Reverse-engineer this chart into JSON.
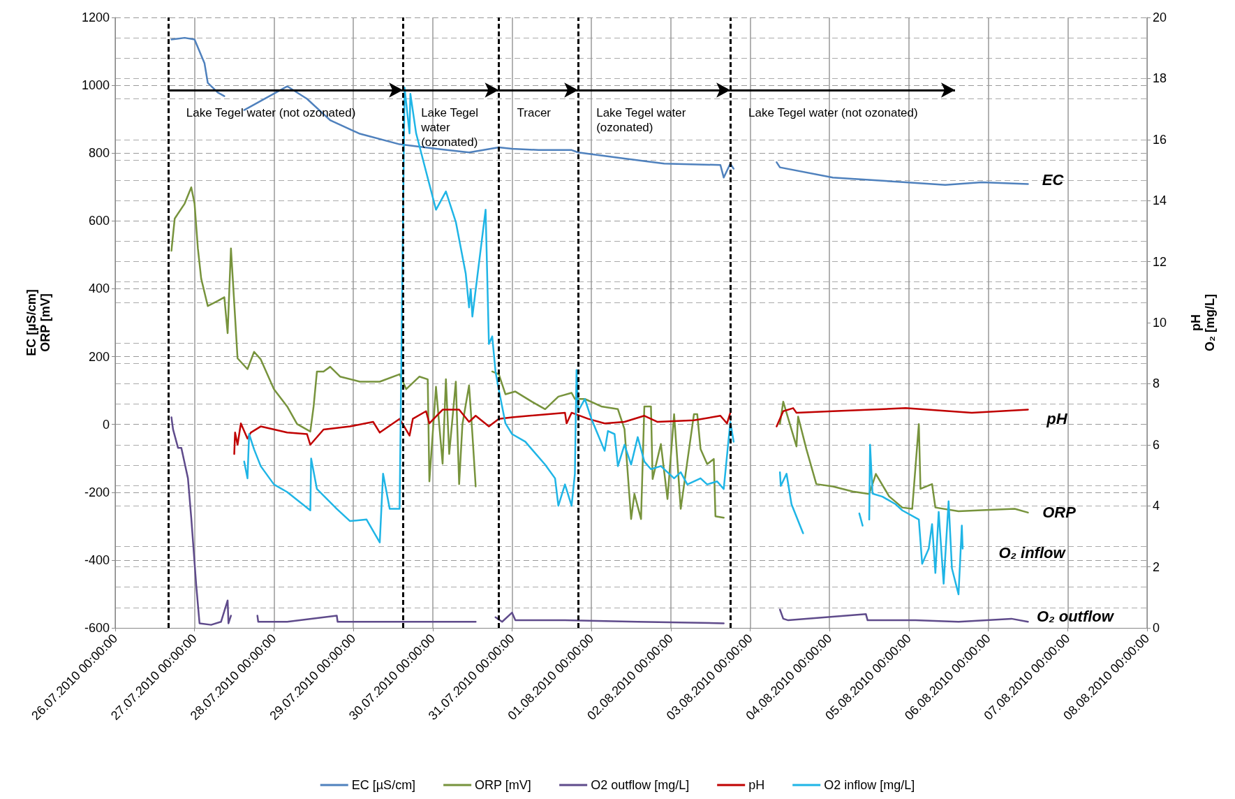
{
  "chart_data": {
    "type": "line",
    "ylabel": "EC [µS/cm]\nORP [mV]",
    "y2label": "pH\nO₂ [mg/L]",
    "xlim": [
      "2010-07-26",
      "2010-08-08"
    ],
    "xticks": [
      {
        "value": "2010-07-26",
        "label": "26.07.2010 00:00:00"
      },
      {
        "value": "2010-07-27",
        "label": "27.07.2010 00:00:00"
      },
      {
        "value": "2010-07-28",
        "label": "28.07.2010 00:00:00"
      },
      {
        "value": "2010-07-29",
        "label": "29.07.2010 00:00:00"
      },
      {
        "value": "2010-07-30",
        "label": "30.07.2010 00:00:00"
      },
      {
        "value": "2010-07-31",
        "label": "31.07.2010 00:00:00"
      },
      {
        "value": "2010-08-01",
        "label": "01.08.2010 00:00:00"
      },
      {
        "value": "2010-08-02",
        "label": "02.08.2010 00:00:00"
      },
      {
        "value": "2010-08-03",
        "label": "03.08.2010 00:00:00"
      },
      {
        "value": "2010-08-04",
        "label": "04.08.2010 00:00:00"
      },
      {
        "value": "2010-08-05",
        "label": "05.08.2010 00:00:00"
      },
      {
        "value": "2010-08-06",
        "label": "06.08.2010 00:00:00"
      },
      {
        "value": "2010-08-07",
        "label": "07.08.2010 00:00:00"
      },
      {
        "value": "2010-08-08",
        "label": "08.08.2010 00:00:00"
      }
    ],
    "ylim": [
      -600,
      1200
    ],
    "yticks": [
      -600,
      -400,
      -200,
      0,
      200,
      400,
      600,
      800,
      1000,
      1200
    ],
    "y2lim": [
      0,
      20
    ],
    "y2ticks": [
      0,
      2,
      4,
      6,
      8,
      10,
      12,
      14,
      16,
      18,
      20
    ],
    "grid": true,
    "legend": "bottom",
    "marker": "none",
    "line_style": "solid",
    "series": [
      {
        "name": "EC [µS/cm]",
        "color": "#4f81bd",
        "x": [
          "2010-07-26T17:00",
          "2010-07-26T21:00",
          "2010-07-27T00:00",
          "2010-07-27T03:00",
          "2010-07-27T04:00",
          "2010-07-27T07:00",
          "2010-07-27T09:00",
          "2010-07-27T12:00",
          "2010-07-27T15:00",
          "2010-07-28T04:00",
          "2010-07-28T10:00",
          "2010-07-28T17:00",
          "2010-07-29T02:00",
          "2010-07-29T14:00",
          "2010-07-30T01:00",
          "2010-07-30T11:00",
          "2010-07-30T20:00",
          "2010-07-31T00:00",
          "2010-07-31T08:00",
          "2010-07-31T18:00",
          "2010-07-31T20:00",
          "2010-08-01T10:00",
          "2010-08-01T22:00",
          "2010-08-02T15:00",
          "2010-08-02T16:00",
          "2010-08-02T18:00",
          "2010-08-02T19:00",
          "2010-08-03T00:00",
          "2010-08-03T08:00",
          "2010-08-03T09:00",
          "2010-08-04T01:00",
          "2010-08-04T23:00",
          "2010-08-05T11:00",
          "2010-08-05T22:00",
          "2010-08-06T12:00"
        ],
        "values": [
          1135,
          1140,
          1135,
          1065,
          1007,
          979,
          968,
          null,
          927,
          997,
          960,
          897,
          857,
          826,
          813,
          802,
          817,
          813,
          809,
          809,
          802,
          784,
          769,
          765,
          728,
          769,
          754,
          null,
          773,
          758,
          728,
          714,
          706,
          714,
          709
        ]
      },
      {
        "name": "ORP [mV]",
        "color": "#77933c",
        "x": [
          "2010-07-26T17:00",
          "2010-07-26T18:00",
          "2010-07-26T21:00",
          "2010-07-26T23:00",
          "2010-07-27T00:00",
          "2010-07-27T01:00",
          "2010-07-27T02:00",
          "2010-07-27T04:00",
          "2010-07-27T07:00",
          "2010-07-27T09:00",
          "2010-07-27T10:00",
          "2010-07-27T11:00",
          "2010-07-27T13:00",
          "2010-07-27T16:00",
          "2010-07-27T18:00",
          "2010-07-27T20:00",
          "2010-07-28T00:00",
          "2010-07-28T04:00",
          "2010-07-28T07:00",
          "2010-07-28T11:00",
          "2010-07-28T12:00",
          "2010-07-28T13:00",
          "2010-07-28T15:00",
          "2010-07-28T17:00",
          "2010-07-28T20:00",
          "2010-07-29T02:00",
          "2010-07-29T08:00",
          "2010-07-29T14:00",
          "2010-07-29T16:00",
          "2010-07-29T20:00",
          "2010-07-29T22:30",
          "2010-07-29T23:00",
          "2010-07-30T01:00",
          "2010-07-30T03:00",
          "2010-07-30T04:00",
          "2010-07-30T05:00",
          "2010-07-30T07:00",
          "2010-07-30T08:00",
          "2010-07-30T09:00",
          "2010-07-30T11:00",
          "2010-07-30T12:00",
          "2010-07-30T13:00",
          "2010-07-30T15:00",
          "2010-07-30T18:00",
          "2010-07-30T20:00",
          "2010-07-30T22:00",
          "2010-07-31T01:00",
          "2010-07-31T06:00",
          "2010-07-31T10:00",
          "2010-07-31T14:00",
          "2010-07-31T18:00",
          "2010-07-31T19:00",
          "2010-07-31T22:00",
          "2010-08-01T03:00",
          "2010-08-01T08:00",
          "2010-08-01T10:00",
          "2010-08-01T12:00",
          "2010-08-01T13:00",
          "2010-08-01T15:00",
          "2010-08-01T16:00",
          "2010-08-01T18:00",
          "2010-08-01T18:30",
          "2010-08-01T21:00",
          "2010-08-01T23:00",
          "2010-08-02T01:00",
          "2010-08-02T03:00",
          "2010-08-02T05:00",
          "2010-08-02T07:00",
          "2010-08-02T08:00",
          "2010-08-02T09:00",
          "2010-08-02T11:00",
          "2010-08-02T13:00",
          "2010-08-02T13:30",
          "2010-08-02T16:00",
          "2010-08-03T00:00",
          "2010-08-03T09:00",
          "2010-08-03T10:00",
          "2010-08-03T14:00",
          "2010-08-03T14:30",
          "2010-08-03T17:00",
          "2010-08-03T20:00",
          "2010-08-04T01:00",
          "2010-08-04T07:00",
          "2010-08-04T12:00",
          "2010-08-04T14:00",
          "2010-08-04T18:00",
          "2010-08-04T22:00",
          "2010-08-05T01:00",
          "2010-08-05T03:00",
          "2010-08-05T03:30",
          "2010-08-05T07:00",
          "2010-08-05T08:00",
          "2010-08-05T15:00",
          "2010-08-05T22:00",
          "2010-08-06T08:00",
          "2010-08-06T12:00"
        ],
        "values": [
          512,
          607,
          651,
          699,
          651,
          519,
          430,
          349,
          364,
          375,
          269,
          519,
          195,
          163,
          214,
          192,
          104,
          53,
          1,
          -21,
          53,
          156,
          156,
          170,
          141,
          126,
          126,
          148,
          104,
          141,
          133,
          -168,
          111,
          -116,
          133,
          -87,
          126,
          -176,
          1,
          115,
          -28,
          -183,
          null,
          156,
          148,
          89,
          97,
          67,
          45,
          82,
          93,
          75,
          75,
          53,
          45,
          -14,
          -279,
          -205,
          -279,
          53,
          53,
          -161,
          -58,
          -220,
          30,
          -249,
          -109,
          30,
          30,
          -73,
          -117,
          -102,
          -271,
          -275,
          null,
          1,
          67,
          -65,
          23,
          -73,
          -176,
          -183,
          -198,
          -205,
          -146,
          -212,
          -245,
          -249,
          1,
          -190,
          -176,
          -245,
          -256,
          -253,
          -249,
          -260
        ]
      },
      {
        "name": "O2 outflow [mg/L]",
        "color": "#5f4b8b",
        "axis": "y2",
        "x": [
          "2010-07-26T17:00",
          "2010-07-26T17:30",
          "2010-07-26T19:00",
          "2010-07-26T20:00",
          "2010-07-26T22:00",
          "2010-07-26T23:00",
          "2010-07-27T00:30",
          "2010-07-27T01:30",
          "2010-07-27T05:00",
          "2010-07-27T08:00",
          "2010-07-27T10:00",
          "2010-07-27T10:15",
          "2010-07-27T11:00",
          "2010-07-27T14:00",
          "2010-07-27T19:00",
          "2010-07-27T19:15",
          "2010-07-28T04:00",
          "2010-07-28T19:00",
          "2010-07-28T19:15",
          "2010-07-29T14:00",
          "2010-07-30T13:00",
          "2010-07-30T16:00",
          "2010-07-30T19:00",
          "2010-07-30T21:00",
          "2010-07-31T00:00",
          "2010-07-31T01:00",
          "2010-07-31T16:00",
          "2010-08-01T14:00",
          "2010-08-02T16:00",
          "2010-08-03T00:00",
          "2010-08-03T09:00",
          "2010-08-03T10:00",
          "2010-08-03T11:30",
          "2010-08-04T11:00",
          "2010-08-04T11:30",
          "2010-08-05T02:00",
          "2010-08-05T15:00",
          "2010-08-06T07:00",
          "2010-08-06T12:00"
        ],
        "values": [
          6.9,
          6.5,
          5.9,
          5.9,
          4.9,
          3.6,
          1.4,
          0.15,
          0.1,
          0.2,
          0.9,
          0.15,
          0.4,
          null,
          0.4,
          0.2,
          0.2,
          0.4,
          0.2,
          0.2,
          0.2,
          null,
          0.35,
          0.2,
          0.5,
          0.25,
          0.25,
          0.2,
          0.15,
          null,
          0.6,
          0.3,
          0.25,
          0.45,
          0.25,
          0.25,
          0.2,
          0.3,
          0.2
        ]
      },
      {
        "name": "pH",
        "color": "#c00000",
        "axis": "y2",
        "x": [
          "2010-07-27T12:00",
          "2010-07-27T12:15",
          "2010-07-27T13:00",
          "2010-07-27T14:00",
          "2010-07-27T16:00",
          "2010-07-27T17:00",
          "2010-07-27T20:00",
          "2010-07-28T04:00",
          "2010-07-28T10:00",
          "2010-07-28T11:00",
          "2010-07-28T15:00",
          "2010-07-28T23:00",
          "2010-07-29T06:00",
          "2010-07-29T08:00",
          "2010-07-29T14:00",
          "2010-07-29T17:00",
          "2010-07-29T18:00",
          "2010-07-29T22:00",
          "2010-07-29T23:00",
          "2010-07-30T03:00",
          "2010-07-30T08:00",
          "2010-07-30T11:00",
          "2010-07-30T13:00",
          "2010-07-30T17:00",
          "2010-07-30T20:00",
          "2010-07-31T00:00",
          "2010-07-31T16:00",
          "2010-07-31T16:30",
          "2010-07-31T18:00",
          "2010-07-31T23:00",
          "2010-08-01T04:00",
          "2010-08-01T10:00",
          "2010-08-01T16:00",
          "2010-08-01T20:00",
          "2010-08-02T07:00",
          "2010-08-02T15:00",
          "2010-08-02T17:00",
          "2010-08-02T18:00",
          "2010-08-03T00:00",
          "2010-08-03T08:00",
          "2010-08-03T10:00",
          "2010-08-03T13:00",
          "2010-08-03T14:00",
          "2010-08-04T01:00",
          "2010-08-04T23:00",
          "2010-08-05T19:00",
          "2010-08-06T12:00"
        ],
        "values": [
          5.7,
          6.4,
          6.0,
          6.7,
          6.2,
          6.4,
          6.6,
          6.4,
          6.35,
          6.0,
          6.5,
          6.6,
          6.75,
          6.4,
          6.85,
          6.3,
          6.85,
          7.1,
          6.7,
          7.15,
          7.15,
          6.75,
          6.95,
          6.6,
          6.85,
          6.9,
          7.05,
          6.7,
          7.05,
          6.85,
          6.7,
          6.75,
          6.95,
          6.75,
          6.8,
          6.95,
          6.7,
          7.05,
          null,
          6.6,
          7.1,
          7.2,
          7.05,
          7.1,
          7.2,
          7.05,
          7.15
        ]
      },
      {
        "name": "O2 inflow [mg/L]",
        "color": "#1fb5e6",
        "axis": "y2",
        "x": [
          "2010-07-27T15:00",
          "2010-07-27T16:00",
          "2010-07-27T16:30",
          "2010-07-27T18:00",
          "2010-07-27T20:00",
          "2010-07-28T00:00",
          "2010-07-28T04:00",
          "2010-07-28T11:00",
          "2010-07-28T11:15",
          "2010-07-28T13:00",
          "2010-07-28T19:00",
          "2010-07-28T23:00",
          "2010-07-29T04:00",
          "2010-07-29T08:00",
          "2010-07-29T09:00",
          "2010-07-29T11:00",
          "2010-07-29T14:00",
          "2010-07-29T15:30",
          "2010-07-29T17:00",
          "2010-07-29T17:15",
          "2010-07-29T19:00",
          "2010-07-30T01:00",
          "2010-07-30T04:00",
          "2010-07-30T07:00",
          "2010-07-30T10:00",
          "2010-07-30T11:00",
          "2010-07-30T11:30",
          "2010-07-30T12:00",
          "2010-07-30T16:00",
          "2010-07-30T17:00",
          "2010-07-30T18:00",
          "2010-07-30T19:00",
          "2010-07-30T20:00",
          "2010-07-30T22:00",
          "2010-07-31T00:00",
          "2010-07-31T04:00",
          "2010-07-31T06:00",
          "2010-07-31T10:00",
          "2010-07-31T13:00",
          "2010-07-31T14:00",
          "2010-07-31T16:00",
          "2010-07-31T18:00",
          "2010-07-31T19:00",
          "2010-07-31T19:30",
          "2010-07-31T20:00",
          "2010-07-31T22:00",
          "2010-08-01T00:00",
          "2010-08-01T04:00",
          "2010-08-01T05:00",
          "2010-08-01T07:00",
          "2010-08-01T08:00",
          "2010-08-01T10:00",
          "2010-08-01T12:00",
          "2010-08-01T14:00",
          "2010-08-01T16:00",
          "2010-08-01T18:00",
          "2010-08-01T21:00",
          "2010-08-02T01:00",
          "2010-08-02T03:00",
          "2010-08-02T05:00",
          "2010-08-02T09:00",
          "2010-08-02T11:00",
          "2010-08-02T14:00",
          "2010-08-02T16:00",
          "2010-08-02T18:00",
          "2010-08-02T19:00",
          "2010-08-03T00:00",
          "2010-08-03T09:00",
          "2010-08-03T09:15",
          "2010-08-03T11:00",
          "2010-08-03T12:30",
          "2010-08-03T16:00",
          "2010-08-04T00:00",
          "2010-08-04T09:00",
          "2010-08-04T10:00",
          "2010-08-04T11:00",
          "2010-08-04T12:00",
          "2010-08-04T12:15",
          "2010-08-04T13:00",
          "2010-08-04T16:00",
          "2010-08-04T20:00",
          "2010-08-04T22:00",
          "2010-08-05T03:00",
          "2010-08-05T04:00",
          "2010-08-05T06:00",
          "2010-08-05T07:00",
          "2010-08-05T08:00",
          "2010-08-05T09:00",
          "2010-08-05T10:30",
          "2010-08-05T12:00",
          "2010-08-05T13:00",
          "2010-08-05T15:00",
          "2010-08-05T16:00",
          "2010-08-05T16:15"
        ],
        "values": [
          5.45,
          4.9,
          6.35,
          5.85,
          5.3,
          4.7,
          4.45,
          3.85,
          5.55,
          4.55,
          3.9,
          3.5,
          3.55,
          2.8,
          5.05,
          3.9,
          3.9,
          17.7,
          16.2,
          17.5,
          16.2,
          13.7,
          14.3,
          13.3,
          11.6,
          10.5,
          11.1,
          10.2,
          13.7,
          9.3,
          9.55,
          8.4,
          7.8,
          6.7,
          6.35,
          6.1,
          5.85,
          5.35,
          4.9,
          4.0,
          4.7,
          4.0,
          5.05,
          8.45,
          7.1,
          7.5,
          6.85,
          5.8,
          6.45,
          6.35,
          5.3,
          6.0,
          5.35,
          6.25,
          5.45,
          5.2,
          5.3,
          4.9,
          5.1,
          4.7,
          4.9,
          4.7,
          4.8,
          4.55,
          6.75,
          6.1,
          null,
          5.1,
          4.65,
          5.05,
          4.05,
          3.1,
          null,
          3.75,
          3.35,
          null,
          3.55,
          6.0,
          4.4,
          4.3,
          4.05,
          3.85,
          3.55,
          2.1,
          2.6,
          3.4,
          1.8,
          3.8,
          1.45,
          4.15,
          1.95,
          1.1,
          3.35,
          2.6
        ]
      }
    ],
    "ref_lines": [
      {
        "axis": "x",
        "value": "2010-07-26T16:00",
        "color": "#000000",
        "line_style": "dashed"
      },
      {
        "axis": "x",
        "value": "2010-07-29T15:00",
        "color": "#000000",
        "line_style": "dashed"
      },
      {
        "axis": "x",
        "value": "2010-07-30T20:00",
        "color": "#000000",
        "line_style": "dashed"
      },
      {
        "axis": "x",
        "value": "2010-07-31T20:00",
        "color": "#000000",
        "line_style": "dashed"
      },
      {
        "axis": "x",
        "value": "2010-08-02T18:00",
        "color": "#000000",
        "line_style": "dashed"
      }
    ],
    "annotations": [
      "Lake Tegel water (not ozonated)",
      "Lake Tegel water (ozonated)",
      "Tracer",
      "Lake Tegel water (ozonated)",
      "Lake Tegel water (not ozonated)",
      "EC",
      "pH",
      "ORP",
      "O₂ inflow",
      "O₂ outflow"
    ]
  }
}
